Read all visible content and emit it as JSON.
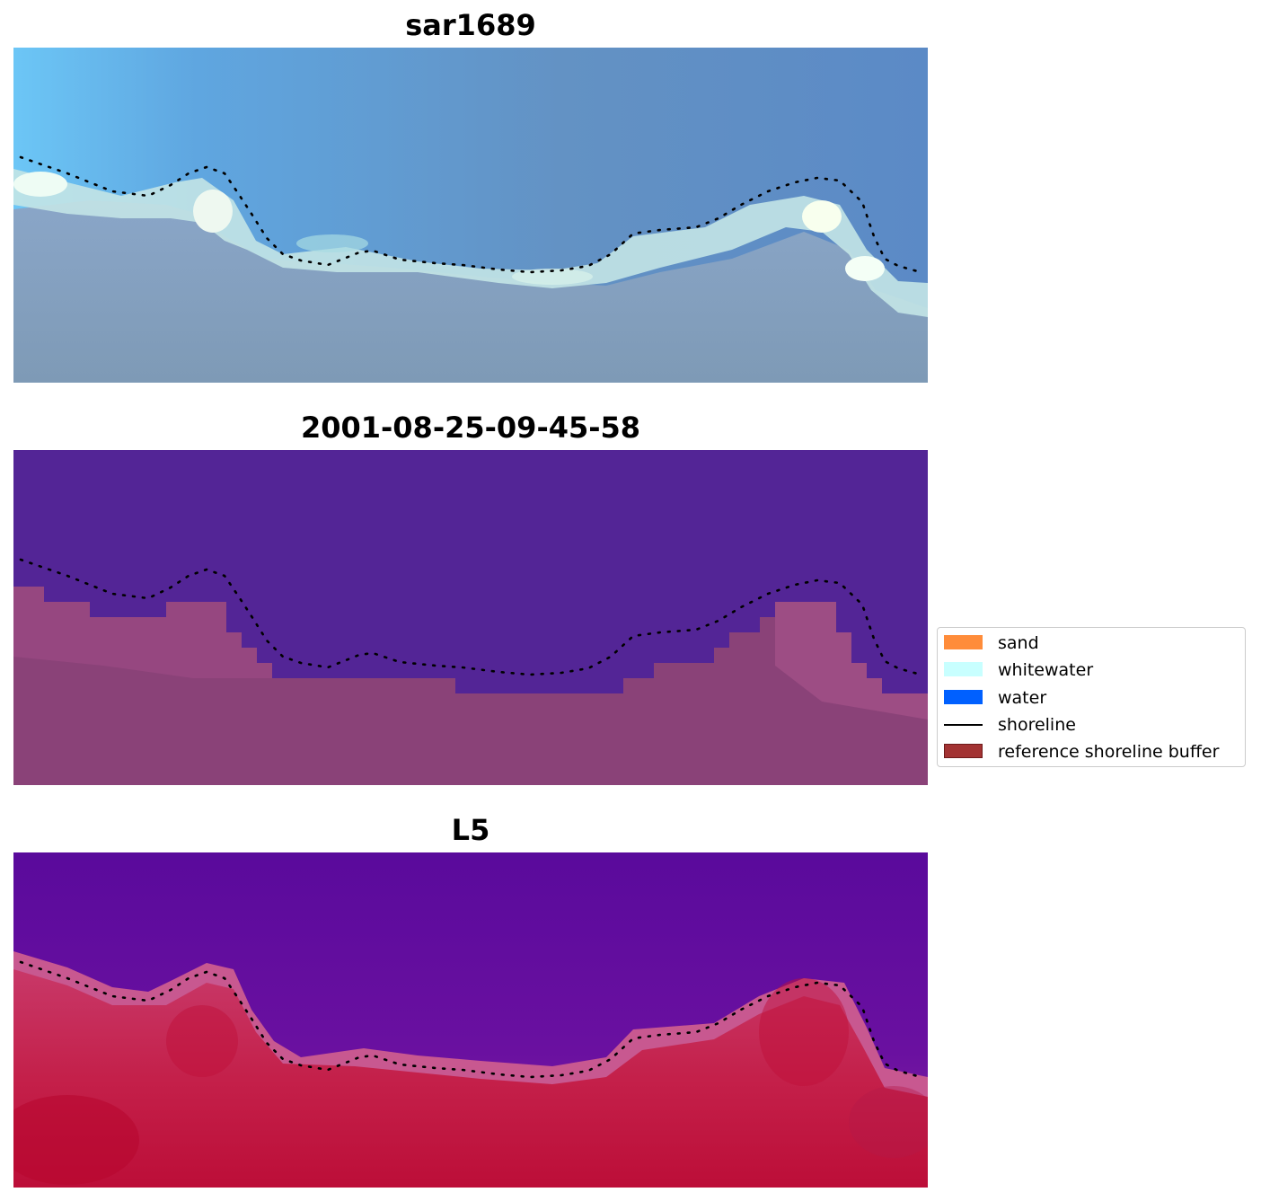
{
  "panels": [
    {
      "title": "sar1689",
      "kind": "rgb"
    },
    {
      "title": "2001-08-25-09-45-58",
      "kind": "classified"
    },
    {
      "title": "L5",
      "kind": "index"
    }
  ],
  "legend": {
    "items": [
      {
        "label": "sand",
        "color": "#ff8c3a",
        "type": "patch"
      },
      {
        "label": "whitewater",
        "color": "#c8ffff",
        "type": "patch"
      },
      {
        "label": "water",
        "color": "#0060ff",
        "type": "patch"
      },
      {
        "label": "shoreline",
        "color": "#000000",
        "type": "line"
      },
      {
        "label": "reference shoreline buffer",
        "color": "#a33333",
        "type": "patch"
      }
    ]
  },
  "colors": {
    "classified_water": "#532596",
    "classified_land": "#8a4278",
    "index_water": "#5a0a9c",
    "index_land": "#c0103a",
    "rgb_sky": "#5e92c6",
    "rgb_white": "#f0fff4"
  }
}
